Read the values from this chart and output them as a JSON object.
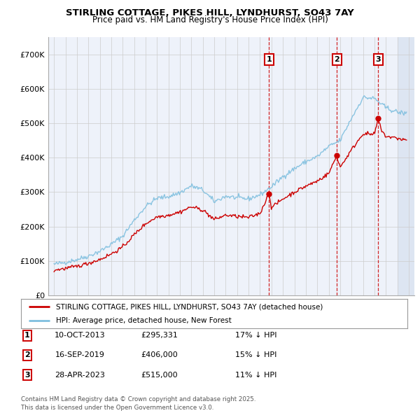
{
  "title_line1": "STIRLING COTTAGE, PIKES HILL, LYNDHURST, SO43 7AY",
  "title_line2": "Price paid vs. HM Land Registry's House Price Index (HPI)",
  "xlim": [
    1994.5,
    2026.5
  ],
  "ylim": [
    0,
    750000
  ],
  "yticks": [
    0,
    100000,
    200000,
    300000,
    400000,
    500000,
    600000,
    700000
  ],
  "ytick_labels": [
    "£0",
    "£100K",
    "£200K",
    "£300K",
    "£400K",
    "£500K",
    "£600K",
    "£700K"
  ],
  "sale_dates": [
    2013.78,
    2019.71,
    2023.32
  ],
  "sale_prices": [
    295331,
    406000,
    515000
  ],
  "sale_labels": [
    "1",
    "2",
    "3"
  ],
  "sale_info": [
    {
      "num": "1",
      "date": "10-OCT-2013",
      "price": "£295,331",
      "hpi": "17% ↓ HPI"
    },
    {
      "num": "2",
      "date": "16-SEP-2019",
      "price": "£406,000",
      "hpi": "15% ↓ HPI"
    },
    {
      "num": "3",
      "date": "28-APR-2023",
      "price": "£515,000",
      "hpi": "11% ↓ HPI"
    }
  ],
  "legend_line1": "STIRLING COTTAGE, PIKES HILL, LYNDHURST, SO43 7AY (detached house)",
  "legend_line2": "HPI: Average price, detached house, New Forest",
  "footnote": "Contains HM Land Registry data © Crown copyright and database right 2025.\nThis data is licensed under the Open Government Licence v3.0.",
  "hpi_color": "#7fbfdf",
  "price_color": "#cc0000",
  "vline_color": "#cc0000",
  "background_plot": "#eef2fa",
  "background_fig": "#ffffff",
  "grid_color": "#cccccc",
  "future_bg": "#dde5f2"
}
